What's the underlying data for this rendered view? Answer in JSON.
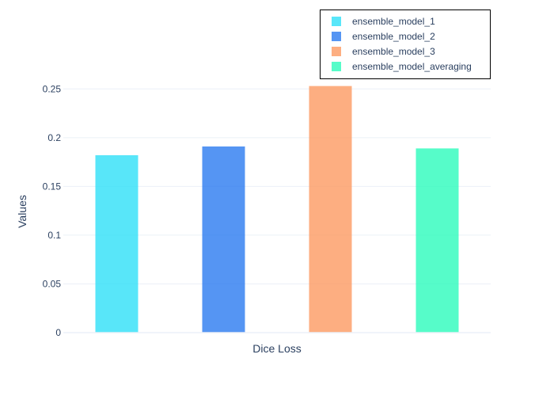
{
  "chart_data": {
    "type": "bar",
    "categories": [
      "Dice Loss"
    ],
    "xlabel": "Dice Loss",
    "ylabel": "Values",
    "ylim": [
      0,
      0.26
    ],
    "yticks": [
      0,
      0.05,
      0.1,
      0.15,
      0.2,
      0.25
    ],
    "ytick_labels": [
      "0",
      "0.05",
      "0.1",
      "0.15",
      "0.2",
      "0.25"
    ],
    "grid": true,
    "legend_position": "top-right",
    "series": [
      {
        "name": "ensemble_model_1",
        "values": [
          0.182
        ],
        "color": "#2ee0f8"
      },
      {
        "name": "ensemble_model_2",
        "values": [
          0.191
        ],
        "color": "#2a7bf0"
      },
      {
        "name": "ensemble_model_3",
        "values": [
          0.253
        ],
        "color": "#fd9a62"
      },
      {
        "name": "ensemble_model_averaging",
        "values": [
          0.189
        ],
        "color": "#2cfbbc"
      }
    ]
  }
}
